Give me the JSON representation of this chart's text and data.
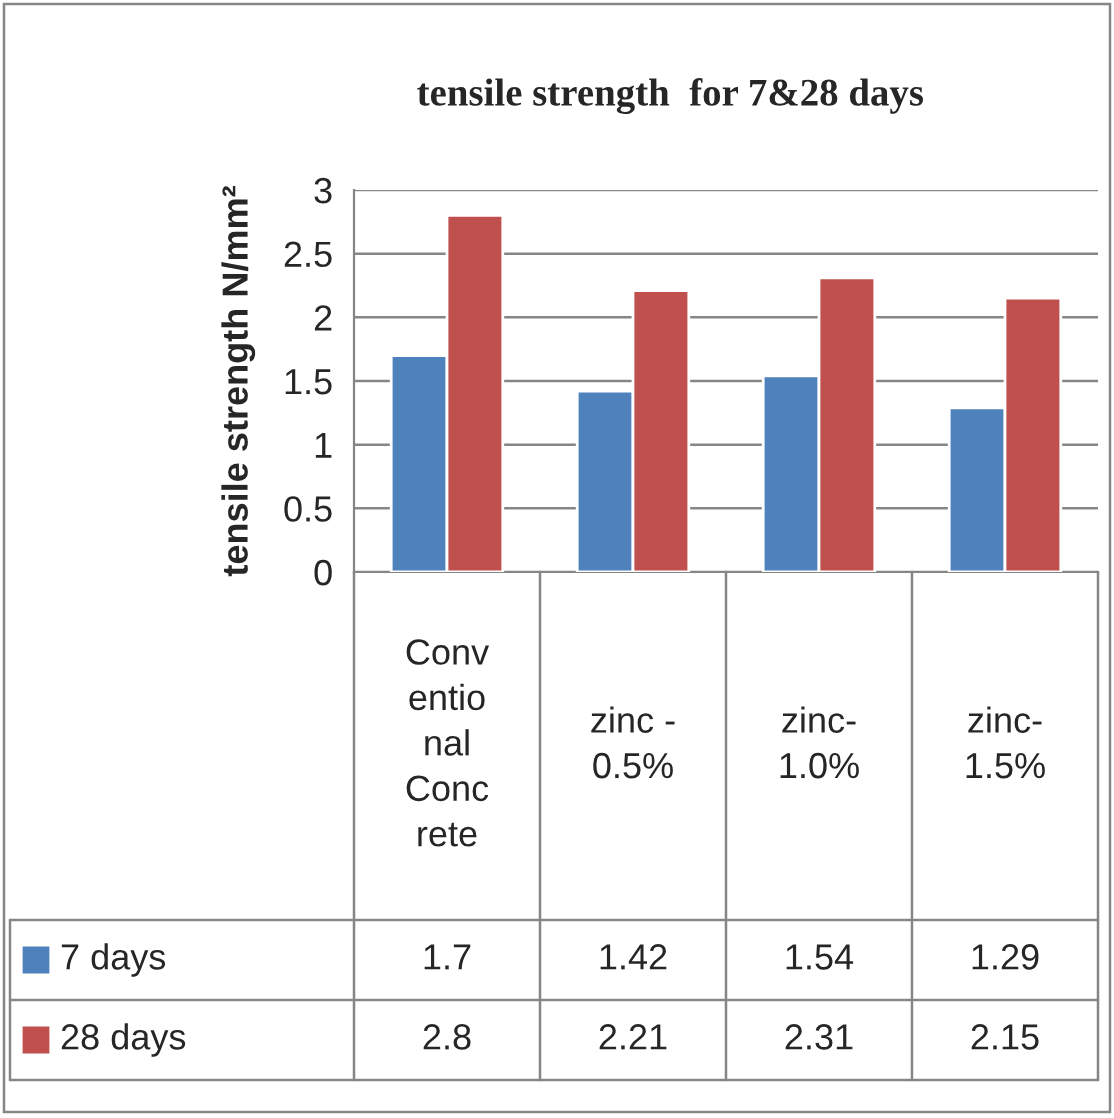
{
  "chart_data": {
    "type": "bar",
    "title": "tensile strength  for 7&28 days",
    "ylabel": "tensile strength N/mm²",
    "categories": [
      "Conv\nentio\nnal\nConc\nrete",
      "zinc -\n0.5%",
      "zinc-\n1.0%",
      "zinc-\n1.5%"
    ],
    "series": [
      {
        "name": "7 days",
        "color": "#4f81bd",
        "values": [
          1.7,
          1.42,
          1.54,
          1.29
        ]
      },
      {
        "name": "28 days",
        "color": "#c0504d",
        "values": [
          2.8,
          2.21,
          2.31,
          2.15
        ]
      }
    ],
    "ylim": [
      0,
      3
    ],
    "yticks": [
      0,
      0.5,
      1,
      1.5,
      2,
      2.5,
      3
    ],
    "grid": "y",
    "data_labels": true,
    "legend": "bottom left"
  }
}
